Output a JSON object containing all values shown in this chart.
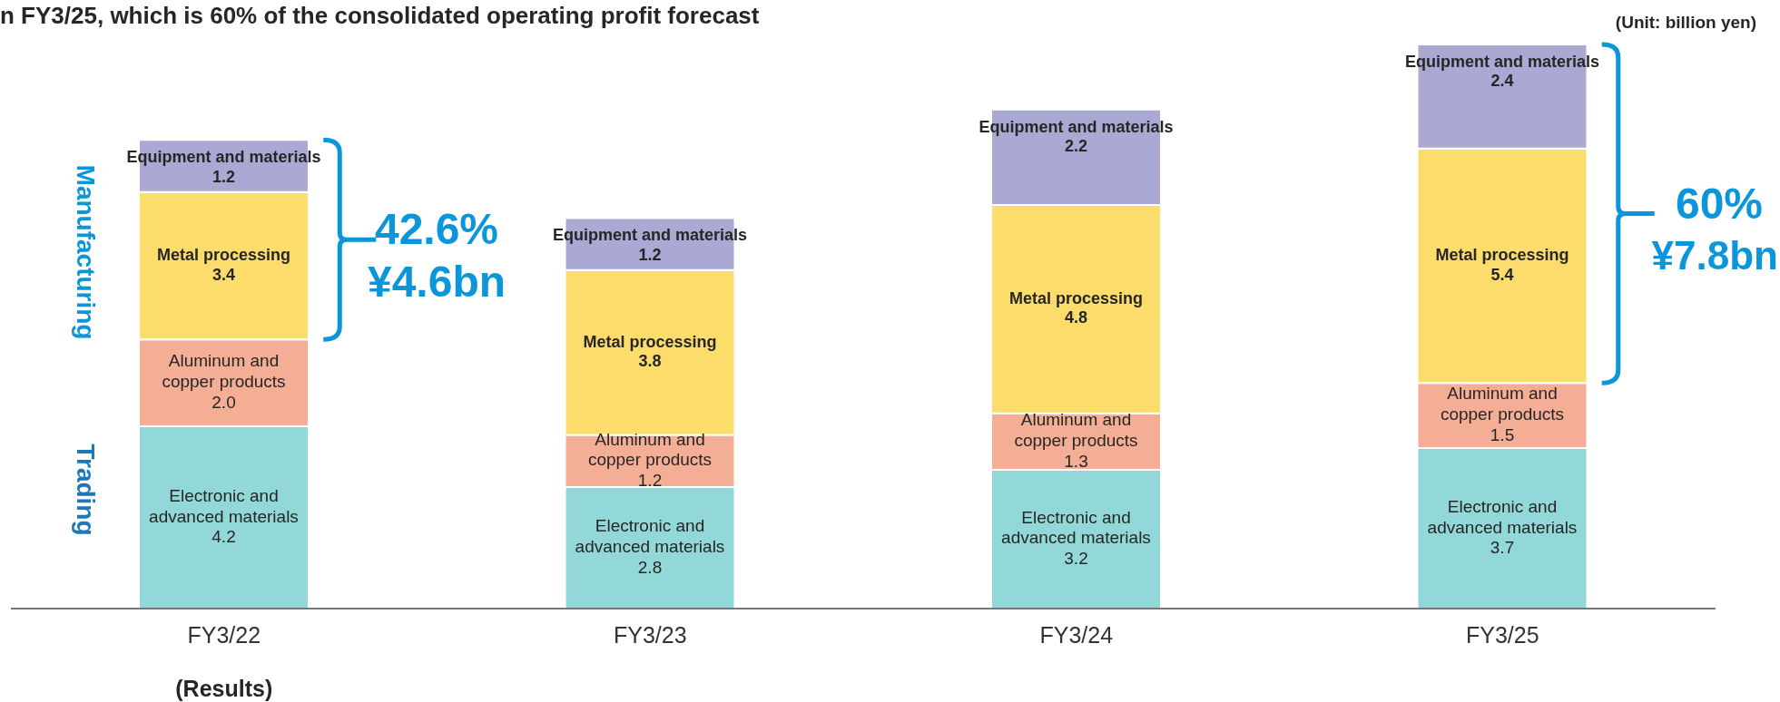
{
  "chart_data": {
    "type": "bar",
    "stacked": true,
    "title": "n FY3/25, which is 60% of the consolidated operating profit forecast",
    "categories": [
      "FY3/22",
      "FY3/23",
      "FY3/24",
      "FY3/25"
    ],
    "series": [
      {
        "name": "Electronic and advanced materials",
        "color": "#93d8d8",
        "values": [
          4.2,
          2.8,
          3.2,
          3.7
        ],
        "value_labels": [
          "4.2",
          "2.8",
          "3.2",
          "3.7"
        ]
      },
      {
        "name": "Aluminum and copper products",
        "color": "#f4ae96",
        "values": [
          2.0,
          1.2,
          1.3,
          1.5
        ],
        "value_labels": [
          "2.0",
          "1.2",
          "1.3",
          "1.5"
        ]
      },
      {
        "name": "Metal processing",
        "color": "#fcdc6b",
        "values": [
          3.4,
          3.8,
          4.8,
          5.4
        ],
        "value_labels": [
          "3.4",
          "3.8",
          "4.8",
          "5.4"
        ]
      },
      {
        "name": "Equipment and materials",
        "color": "#a9a9d4",
        "values": [
          1.2,
          1.2,
          2.2,
          2.4
        ],
        "value_labels": [
          "1.2",
          "1.2",
          "2.2",
          "2.4"
        ]
      }
    ],
    "annotations": [
      "(Unit: billion yen)",
      "Manufacturing",
      "Trading",
      "42.6%",
      "¥4.6bn",
      "60%",
      "¥7.8bn",
      "(Results)"
    ]
  }
}
